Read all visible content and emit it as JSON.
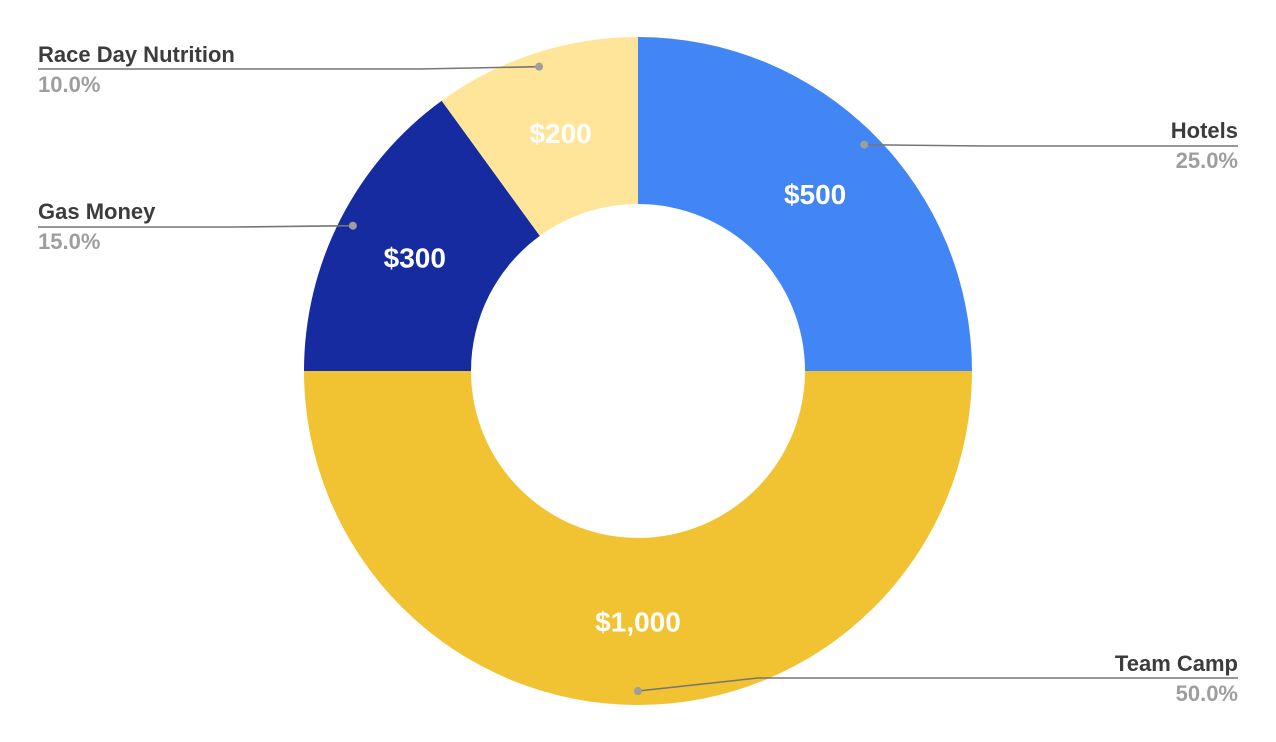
{
  "chart_data": {
    "type": "pie",
    "donut": true,
    "title": "",
    "legend": "labels-outside",
    "slices": [
      {
        "label": "Hotels",
        "value": 500,
        "value_label": "$500",
        "percent_label": "25.0%",
        "color": "#4285f4"
      },
      {
        "label": "Team Camp",
        "value": 1000,
        "value_label": "$1,000",
        "percent_label": "50.0%",
        "color": "#f1c232"
      },
      {
        "label": "Gas Money",
        "value": 300,
        "value_label": "$300",
        "percent_label": "15.0%",
        "color": "#172ba0"
      },
      {
        "label": "Race Day Nutrition",
        "value": 200,
        "value_label": "$200",
        "percent_label": "10.0%",
        "color": "#ffe599"
      }
    ]
  }
}
